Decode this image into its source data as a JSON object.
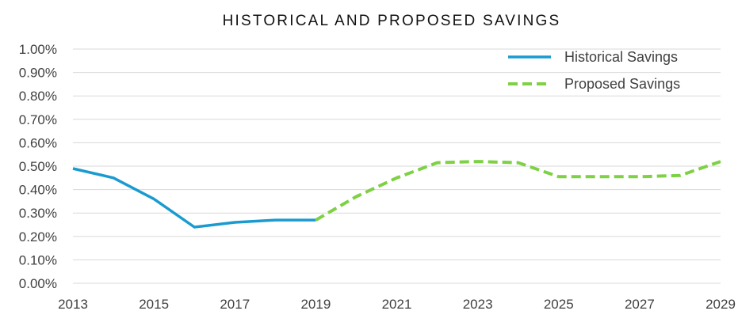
{
  "chart_data": {
    "type": "line",
    "title": "HISTORICAL AND PROPOSED SAVINGS",
    "xlabel": "",
    "ylabel": "",
    "x": [
      2013,
      2014,
      2015,
      2016,
      2017,
      2018,
      2019,
      2020,
      2021,
      2022,
      2023,
      2024,
      2025,
      2026,
      2027,
      2028,
      2029
    ],
    "x_tick_labels": [
      "2013",
      "2015",
      "2017",
      "2019",
      "2021",
      "2023",
      "2025",
      "2027",
      "2029"
    ],
    "y_tick_labels": [
      "0.00%",
      "0.10%",
      "0.20%",
      "0.30%",
      "0.40%",
      "0.50%",
      "0.60%",
      "0.70%",
      "0.80%",
      "0.90%",
      "1.00%"
    ],
    "xlim": [
      2013,
      2029
    ],
    "ylim": [
      0,
      1.0
    ],
    "y_unit": "%",
    "grid": true,
    "legend_position": "top-right",
    "series": [
      {
        "name": "Historical Savings",
        "style": "solid",
        "color": "#1a9bd0",
        "x": [
          2013,
          2014,
          2015,
          2016,
          2017,
          2018,
          2019
        ],
        "values": [
          0.49,
          0.45,
          0.36,
          0.24,
          0.26,
          0.27,
          0.27
        ]
      },
      {
        "name": "Proposed Savings",
        "style": "dashed",
        "color": "#7ed144",
        "x": [
          2019,
          2020,
          2021,
          2022,
          2023,
          2024,
          2025,
          2026,
          2027,
          2028,
          2029
        ],
        "values": [
          0.27,
          0.37,
          0.45,
          0.515,
          0.52,
          0.515,
          0.455,
          0.455,
          0.455,
          0.46,
          0.52
        ]
      }
    ]
  }
}
